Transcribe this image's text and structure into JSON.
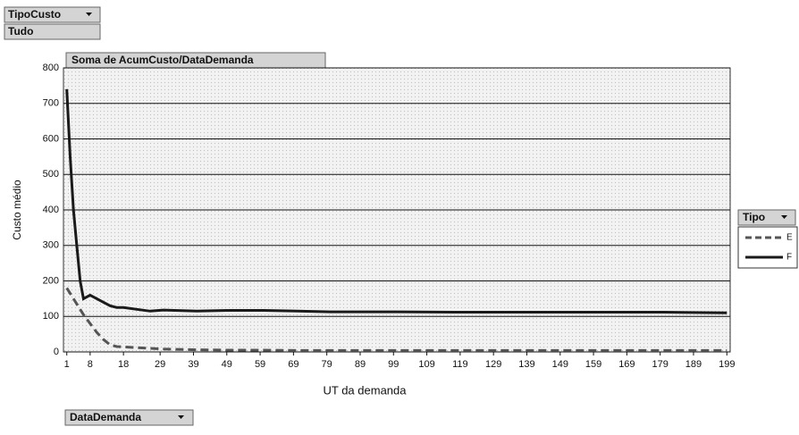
{
  "filters": {
    "page_field": "TipoCusto",
    "page_value": "Tudo",
    "category_field": "DataDemanda",
    "legend_field": "Tipo"
  },
  "chart_data": {
    "type": "line",
    "title": "Soma de AcumCusto/DataDemanda",
    "x_label": "UT da demanda",
    "y_label": "Custo médio",
    "x": [
      1,
      2,
      3,
      4,
      5,
      6,
      8,
      10,
      12,
      14,
      16,
      18,
      22,
      26,
      30,
      40,
      50,
      60,
      70,
      80,
      100,
      120,
      140,
      160,
      180,
      199
    ],
    "series": [
      {
        "name": "E",
        "color": "#555555",
        "dash": true,
        "values": [
          180,
          165,
          150,
          135,
          120,
          105,
          80,
          55,
          35,
          20,
          15,
          14,
          12,
          10,
          8,
          6,
          5,
          5,
          4,
          4,
          4,
          4,
          4,
          4,
          4,
          4
        ]
      },
      {
        "name": "F",
        "color": "#1a1a1a",
        "dash": false,
        "values": [
          740,
          550,
          400,
          300,
          200,
          150,
          160,
          150,
          140,
          130,
          125,
          125,
          120,
          115,
          118,
          115,
          117,
          117,
          115,
          113,
          113,
          112,
          112,
          112,
          112,
          110
        ]
      }
    ],
    "xlim": [
      0,
      200
    ],
    "xticks": [
      1,
      8,
      18,
      29,
      39,
      49,
      59,
      69,
      79,
      89,
      99,
      109,
      119,
      129,
      139,
      149,
      159,
      169,
      179,
      189,
      199
    ],
    "ylim": [
      0,
      800
    ],
    "yticks": [
      0,
      100,
      200,
      300,
      400,
      500,
      600,
      700,
      800
    ],
    "grid": true
  }
}
